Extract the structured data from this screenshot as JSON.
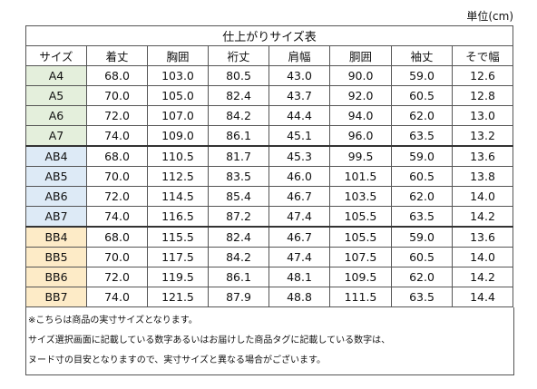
{
  "unit_label": "単位(cm)",
  "table_title": "仕上がりサイズ表",
  "columns": [
    "サイズ",
    "着丈",
    "胸囲",
    "裄丈",
    "肩幅",
    "胴囲",
    "袖丈",
    "そで幅"
  ],
  "rows": [
    {
      "group": "a",
      "cells": [
        "A4",
        "68.0",
        "103.0",
        "80.5",
        "43.0",
        "90.0",
        "59.0",
        "12.6"
      ]
    },
    {
      "group": "a",
      "cells": [
        "A5",
        "70.0",
        "105.0",
        "82.4",
        "43.7",
        "92.0",
        "60.5",
        "12.8"
      ]
    },
    {
      "group": "a",
      "cells": [
        "A6",
        "72.0",
        "107.0",
        "84.2",
        "44.4",
        "94.0",
        "62.0",
        "13.0"
      ]
    },
    {
      "group": "a",
      "cells": [
        "A7",
        "74.0",
        "109.0",
        "86.1",
        "45.1",
        "96.0",
        "63.5",
        "13.2"
      ]
    },
    {
      "group": "ab",
      "cells": [
        "AB4",
        "68.0",
        "110.5",
        "81.7",
        "45.3",
        "99.5",
        "59.0",
        "13.6"
      ]
    },
    {
      "group": "ab",
      "cells": [
        "AB5",
        "70.0",
        "112.5",
        "83.5",
        "46.0",
        "101.5",
        "60.5",
        "13.8"
      ]
    },
    {
      "group": "ab",
      "cells": [
        "AB6",
        "72.0",
        "114.5",
        "85.4",
        "46.7",
        "103.5",
        "62.0",
        "14.0"
      ]
    },
    {
      "group": "ab",
      "cells": [
        "AB7",
        "74.0",
        "116.5",
        "87.2",
        "47.4",
        "105.5",
        "63.5",
        "14.2"
      ]
    },
    {
      "group": "bb",
      "cells": [
        "BB4",
        "68.0",
        "115.5",
        "82.4",
        "46.7",
        "105.5",
        "59.0",
        "13.6"
      ]
    },
    {
      "group": "bb",
      "cells": [
        "BB5",
        "70.0",
        "117.5",
        "84.2",
        "47.4",
        "107.5",
        "60.5",
        "14.0"
      ]
    },
    {
      "group": "bb",
      "cells": [
        "BB6",
        "72.0",
        "119.5",
        "86.1",
        "48.1",
        "109.5",
        "62.0",
        "14.2"
      ]
    },
    {
      "group": "bb",
      "cells": [
        "BB7",
        "74.0",
        "121.5",
        "87.9",
        "48.8",
        "111.5",
        "63.5",
        "14.4"
      ]
    }
  ],
  "group_colors": {
    "a": "#e4efdc",
    "ab": "#ddeaf6",
    "bb": "#fdebc7"
  },
  "notes": [
    "※こちらは商品の実寸サイズとなります。",
    "サイズ選択画面に記載している数字あるいはお届けした商品タグに記載している数字は、",
    "ヌード寸の目安となりますので、実寸サイズと異なる場合がございます。"
  ]
}
